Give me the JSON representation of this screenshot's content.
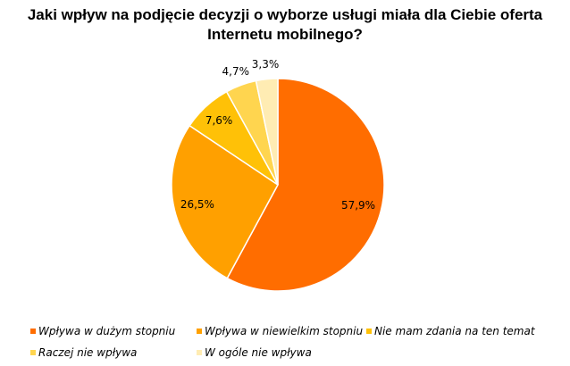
{
  "chart_data": {
    "type": "pie",
    "title": "Jaki wpływ na podjęcie decyzji o wyborze usługi miała dla Ciebie oferta Internetu mobilnego?",
    "categories": [
      "Wpływa w dużym stopniu",
      "Wpływa w niewielkim stopniu",
      "Nie mam zdania na ten temat",
      "Raczej nie wpływa",
      "W ogóle nie wpływa"
    ],
    "values": [
      57.9,
      26.5,
      7.6,
      4.7,
      3.3
    ],
    "data_labels": [
      "57,9%",
      "26,5%",
      "7,6%",
      "4,7%",
      "3,3%"
    ],
    "colors": [
      "#FF6D00",
      "#FFA000",
      "#FFC107",
      "#FFD54F",
      "#FFECB3"
    ],
    "legend_position": "bottom"
  }
}
